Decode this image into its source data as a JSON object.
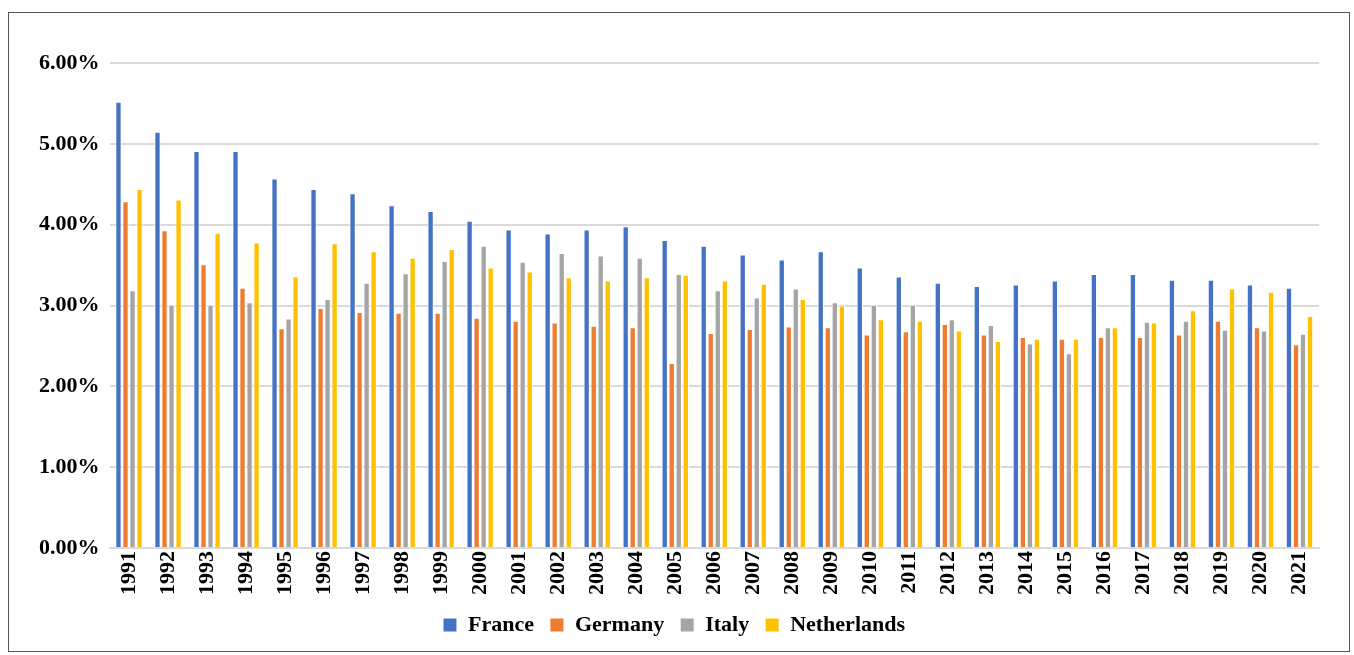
{
  "chart_data": {
    "type": "bar",
    "categories": [
      "1991",
      "1992",
      "1993",
      "1994",
      "1995",
      "1996",
      "1997",
      "1998",
      "1999",
      "2000",
      "2001",
      "2002",
      "2003",
      "2004",
      "2005",
      "2006",
      "2007",
      "2008",
      "2009",
      "2010",
      "2011",
      "2012",
      "2013",
      "2014",
      "2015",
      "2016",
      "2017",
      "2018",
      "2019",
      "2020",
      "2021"
    ],
    "series": [
      {
        "name": "France",
        "color": "#4472c4",
        "values": [
          5.52,
          5.15,
          4.91,
          4.91,
          4.57,
          4.44,
          4.39,
          4.24,
          4.17,
          4.05,
          3.94,
          3.89,
          3.94,
          3.98,
          3.81,
          3.74,
          3.63,
          3.57,
          3.67,
          3.47,
          3.36,
          3.28,
          3.24,
          3.26,
          3.31,
          3.39,
          3.39,
          3.32,
          3.32,
          3.26,
          3.22
        ]
      },
      {
        "name": "Germany",
        "color": "#ed7d31",
        "values": [
          4.29,
          3.93,
          3.51,
          3.22,
          2.72,
          2.97,
          2.92,
          2.91,
          2.91,
          2.85,
          2.81,
          2.79,
          2.75,
          2.73,
          2.29,
          2.66,
          2.71,
          2.74,
          2.73,
          2.64,
          2.68,
          2.77,
          2.64,
          2.61,
          2.59,
          2.61,
          2.61,
          2.64,
          2.81,
          2.73,
          2.52
        ]
      },
      {
        "name": "Italy",
        "color": "#a5a5a5",
        "values": [
          3.19,
          3.01,
          3.01,
          3.04,
          2.84,
          3.08,
          3.28,
          3.4,
          3.55,
          3.74,
          3.54,
          3.65,
          3.62,
          3.59,
          3.39,
          3.19,
          3.1,
          3.21,
          3.04,
          3.01,
          3.01,
          2.83,
          2.76,
          2.53,
          2.41,
          2.73,
          2.8,
          2.81,
          2.7,
          2.69,
          2.65
        ]
      },
      {
        "name": "Netherlands",
        "color": "#ffc000",
        "values": [
          4.44,
          4.31,
          3.9,
          3.78,
          3.36,
          3.77,
          3.67,
          3.59,
          3.7,
          3.47,
          3.42,
          3.35,
          3.31,
          3.35,
          3.38,
          3.31,
          3.27,
          3.08,
          3.0,
          2.83,
          2.81,
          2.69,
          2.56,
          2.59,
          2.59,
          2.73,
          2.79,
          2.94,
          3.21,
          3.17,
          2.87
        ]
      }
    ],
    "ylim": [
      0,
      6
    ],
    "yticks": [
      {
        "value": 0,
        "label": "0.00%"
      },
      {
        "value": 1,
        "label": "1.00%"
      },
      {
        "value": 2,
        "label": "2.00%"
      },
      {
        "value": 3,
        "label": "3.00%"
      },
      {
        "value": 4,
        "label": "4.00%"
      },
      {
        "value": 5,
        "label": "5.00%"
      },
      {
        "value": 6,
        "label": "6.00%"
      }
    ],
    "grid": "y",
    "legend": "bottom"
  }
}
